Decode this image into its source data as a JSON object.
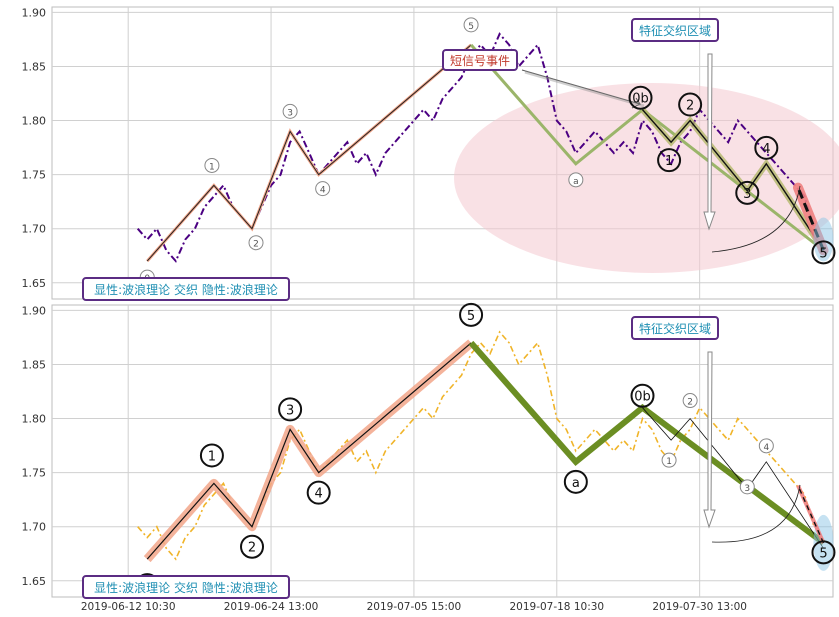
{
  "chart_data": [
    {
      "type": "line",
      "ylim": [
        1.635,
        1.905
      ],
      "yticks": [
        1.65,
        1.7,
        1.75,
        1.8,
        1.85,
        1.9
      ],
      "xticks": [
        0,
        15,
        30,
        45,
        60
      ],
      "xlim": [
        -8,
        74
      ],
      "grid": true,
      "price_color": "#4b0082",
      "price": [
        1.7,
        1.69,
        1.7,
        1.68,
        1.67,
        1.69,
        1.7,
        1.72,
        1.73,
        1.74,
        1.72,
        1.71,
        1.7,
        1.72,
        1.74,
        1.75,
        1.78,
        1.79,
        1.77,
        1.75,
        1.76,
        1.77,
        1.78,
        1.76,
        1.77,
        1.75,
        1.77,
        1.78,
        1.79,
        1.8,
        1.81,
        1.8,
        1.82,
        1.83,
        1.84,
        1.86,
        1.87,
        1.86,
        1.88,
        1.87,
        1.85,
        1.86,
        1.87,
        1.84,
        1.8,
        1.79,
        1.77,
        1.78,
        1.79,
        1.78,
        1.77,
        1.78,
        1.77,
        1.8,
        1.79,
        1.77,
        1.76,
        1.78,
        1.79,
        1.81,
        1.8,
        1.79,
        1.78,
        1.8,
        1.79,
        1.78,
        1.77,
        1.76,
        1.75,
        1.74,
        1.73,
        1.7
      ],
      "signal_label": "短信号事件",
      "region_label": "特征交织区域",
      "caption": "显性:波浪理论 交织 隐性:波浪理论",
      "wave_labels": [
        "0",
        "1",
        "2",
        "3",
        "4",
        "5",
        "a",
        "0b",
        "1",
        "2",
        "3",
        "4",
        "5"
      ]
    },
    {
      "type": "line",
      "ylim": [
        1.635,
        1.905
      ],
      "yticks": [
        1.65,
        1.7,
        1.75,
        1.8,
        1.85,
        1.9
      ],
      "xticks": [
        0,
        15,
        30,
        45,
        60
      ],
      "xlim": [
        -8,
        74
      ],
      "grid": true,
      "price_color": "#f0b429",
      "region_label": "特征交织区域",
      "caption": "显性:波浪理论 交织 隐性:波浪理论",
      "wave_labels": [
        "0",
        "1",
        "2",
        "3",
        "4",
        "5",
        "a",
        "0b",
        "1",
        "2",
        "3",
        "4",
        "5"
      ],
      "x_tick_labels": [
        "2019-06-12 10:30",
        "2019-06-24 13:00",
        "2019-07-05 15:00",
        "2019-07-18 10:30",
        "2019-07-30 13:00"
      ]
    }
  ],
  "y_tick_labels": [
    "1.90",
    "1.85",
    "1.80",
    "1.75",
    "1.70",
    "1.65"
  ]
}
